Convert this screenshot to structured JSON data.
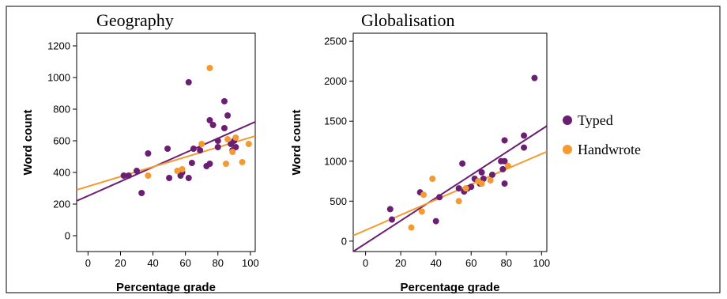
{
  "colors": {
    "typed": "#6b1f73",
    "handwrote": "#f59a30",
    "frame": "#000000"
  },
  "legend": [
    {
      "label": "Typed",
      "color": "#6b1f73"
    },
    {
      "label": "Handwrote",
      "color": "#f59a30"
    }
  ],
  "chart_data": [
    {
      "type": "scatter",
      "title": "Geography",
      "xlabel": "Percentage grade",
      "ylabel": "Word count",
      "xlim": [
        -7,
        103
      ],
      "ylim": [
        -100,
        1280
      ],
      "xticks": [
        0,
        20,
        40,
        60,
        80,
        100
      ],
      "yticks": [
        0,
        200,
        400,
        600,
        800,
        1000,
        1200
      ],
      "grid": false,
      "legend_position": "right",
      "series": [
        {
          "name": "Typed",
          "points": [
            [
              22,
              380
            ],
            [
              25,
              380
            ],
            [
              30,
              410
            ],
            [
              33,
              270
            ],
            [
              37,
              520
            ],
            [
              49,
              550
            ],
            [
              50,
              365
            ],
            [
              57,
              380
            ],
            [
              58,
              400
            ],
            [
              62,
              970
            ],
            [
              62,
              365
            ],
            [
              64,
              460
            ],
            [
              65,
              550
            ],
            [
              69,
              540
            ],
            [
              73,
              440
            ],
            [
              75,
              730
            ],
            [
              75,
              455
            ],
            [
              77,
              700
            ],
            [
              80,
              560
            ],
            [
              80,
              600
            ],
            [
              84,
              850
            ],
            [
              84,
              680
            ],
            [
              86,
              760
            ],
            [
              88,
              580
            ],
            [
              89,
              540
            ],
            [
              90,
              600
            ],
            [
              91,
              560
            ]
          ],
          "fit": [
            [
              -7,
              220
            ],
            [
              103,
              720
            ]
          ]
        },
        {
          "name": "Handwrote",
          "points": [
            [
              37,
              380
            ],
            [
              55,
              410
            ],
            [
              58,
              420
            ],
            [
              70,
              580
            ],
            [
              75,
              1060
            ],
            [
              85,
              455
            ],
            [
              86,
              610
            ],
            [
              89,
              530
            ],
            [
              91,
              620
            ],
            [
              95,
              465
            ],
            [
              99,
              580
            ]
          ],
          "fit": [
            [
              -7,
              290
            ],
            [
              103,
              630
            ]
          ]
        }
      ]
    },
    {
      "type": "scatter",
      "title": "Globalisation",
      "xlabel": "Percentage grade",
      "ylabel": "Word count",
      "xlim": [
        -7,
        103
      ],
      "ylim": [
        -130,
        2600
      ],
      "xticks": [
        0,
        20,
        40,
        60,
        80,
        100
      ],
      "yticks": [
        0,
        500,
        1000,
        1500,
        2000,
        2500
      ],
      "grid": false,
      "legend_position": "right",
      "series": [
        {
          "name": "Typed",
          "points": [
            [
              14,
              400
            ],
            [
              15,
              270
            ],
            [
              31,
              610
            ],
            [
              40,
              250
            ],
            [
              42,
              550
            ],
            [
              53,
              660
            ],
            [
              55,
              970
            ],
            [
              56,
              620
            ],
            [
              58,
              660
            ],
            [
              60,
              680
            ],
            [
              62,
              780
            ],
            [
              65,
              720
            ],
            [
              66,
              860
            ],
            [
              67,
              780
            ],
            [
              72,
              830
            ],
            [
              77,
              1000
            ],
            [
              79,
              1260
            ],
            [
              78,
              900
            ],
            [
              79,
              720
            ],
            [
              79,
              1000
            ],
            [
              90,
              1320
            ],
            [
              90,
              1170
            ],
            [
              96,
              2040
            ]
          ],
          "fit": [
            [
              -7,
              -130
            ],
            [
              103,
              1440
            ]
          ]
        },
        {
          "name": "Handwrote",
          "points": [
            [
              26,
              170
            ],
            [
              32,
              370
            ],
            [
              33,
              580
            ],
            [
              38,
              780
            ],
            [
              53,
              500
            ],
            [
              57,
              660
            ],
            [
              64,
              750
            ],
            [
              66,
              720
            ],
            [
              71,
              760
            ],
            [
              81,
              940
            ]
          ],
          "fit": [
            [
              -7,
              70
            ],
            [
              103,
              1120
            ]
          ]
        }
      ]
    }
  ]
}
